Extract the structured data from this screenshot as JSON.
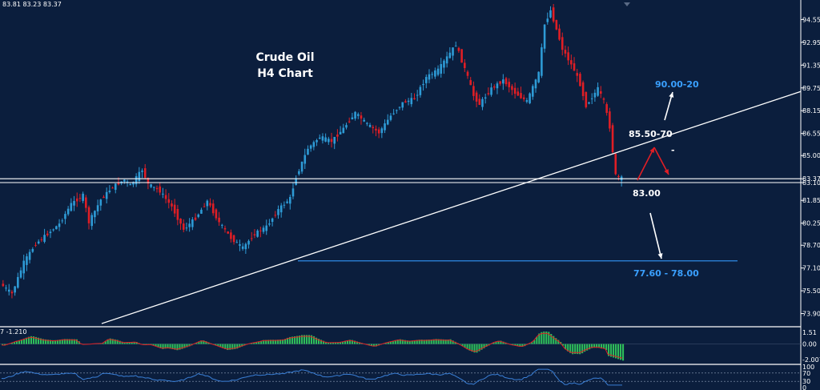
{
  "header": {
    "ohlc_text": "83.81 83.23 83.37"
  },
  "chart_title": {
    "line1": "Crude Oil",
    "line2": "H4 Chart"
  },
  "colors": {
    "background": "#0b1e3d",
    "bull": "#2e9bd6",
    "bear": "#e01e25",
    "line": "#ffffff",
    "support": "#2e8be6",
    "target": "#3aa0ff"
  },
  "price_ticks": [
    "94.55",
    "92.95",
    "91.35",
    "89.75",
    "88.15",
    "86.55",
    "85.00",
    "83.37",
    "83.10",
    "81.85",
    "80.25",
    "78.70",
    "77.10",
    "75.50",
    "73.90"
  ],
  "indicator": {
    "label": "7 -1.210",
    "ticks": [
      "1.51",
      "0.00",
      "-2.007"
    ]
  },
  "oscillator": {
    "ticks": [
      "100",
      "70",
      "30",
      "0"
    ]
  },
  "annotations": {
    "upper_target": "90.00-20",
    "resistance": "85.50-70",
    "current_level": "83.00",
    "lower_target": "77.60 - 78.00",
    "dash_mark": "-"
  },
  "chart_data": {
    "type": "candlestick",
    "title": "Crude Oil H4 Chart",
    "y_axis_ticks": [
      94.55,
      92.95,
      91.35,
      89.75,
      88.15,
      86.55,
      85.0,
      83.37,
      83.1,
      81.85,
      80.25,
      78.7,
      77.1,
      75.5,
      73.9
    ],
    "ylim": [
      73.2,
      95.7
    ],
    "price_path": [
      [
        0,
        76.0
      ],
      [
        4,
        75.3
      ],
      [
        8,
        77.5
      ],
      [
        12,
        78.8
      ],
      [
        16,
        79.5
      ],
      [
        20,
        80.2
      ],
      [
        24,
        81.6
      ],
      [
        28,
        82.2
      ],
      [
        30,
        80.3
      ],
      [
        34,
        81.9
      ],
      [
        38,
        82.8
      ],
      [
        42,
        83.3
      ],
      [
        44,
        82.9
      ],
      [
        48,
        84.0
      ],
      [
        50,
        83.0
      ],
      [
        54,
        82.5
      ],
      [
        58,
        81.4
      ],
      [
        62,
        79.8
      ],
      [
        66,
        80.6
      ],
      [
        70,
        81.8
      ],
      [
        74,
        80.3
      ],
      [
        78,
        79.2
      ],
      [
        82,
        78.5
      ],
      [
        86,
        79.5
      ],
      [
        90,
        80.0
      ],
      [
        94,
        81.2
      ],
      [
        98,
        82.0
      ],
      [
        100,
        83.5
      ],
      [
        104,
        85.5
      ],
      [
        108,
        86.3
      ],
      [
        112,
        86.0
      ],
      [
        116,
        86.9
      ],
      [
        120,
        88.0
      ],
      [
        124,
        87.2
      ],
      [
        128,
        86.6
      ],
      [
        132,
        87.8
      ],
      [
        136,
        88.7
      ],
      [
        140,
        89.0
      ],
      [
        144,
        90.5
      ],
      [
        148,
        91.0
      ],
      [
        152,
        92.2
      ],
      [
        154,
        92.8
      ],
      [
        158,
        90.5
      ],
      [
        160,
        89.2
      ],
      [
        162,
        88.6
      ],
      [
        166,
        89.7
      ],
      [
        170,
        90.3
      ],
      [
        174,
        89.4
      ],
      [
        178,
        88.8
      ],
      [
        182,
        90.8
      ],
      [
        184,
        94.2
      ],
      [
        186,
        95.2
      ],
      [
        190,
        92.5
      ],
      [
        194,
        91.0
      ],
      [
        196,
        90.0
      ],
      [
        198,
        88.5
      ],
      [
        202,
        89.7
      ],
      [
        204,
        88.8
      ],
      [
        206,
        87.0
      ],
      [
        208,
        83.6
      ],
      [
        210,
        83.4
      ]
    ],
    "trendline": [
      [
        127,
        73.2
      ],
      [
        1000,
        89.5
      ]
    ],
    "horizontal_levels": [
      83.37,
      83.1
    ],
    "support_level": 77.6,
    "indicator_series": {
      "type": "histogram",
      "ticks": [
        1.51,
        0.0,
        -2.007
      ],
      "label": "7 -1.210"
    },
    "oscillator_series": {
      "type": "line",
      "ticks": [
        100,
        70,
        30,
        0
      ]
    }
  }
}
